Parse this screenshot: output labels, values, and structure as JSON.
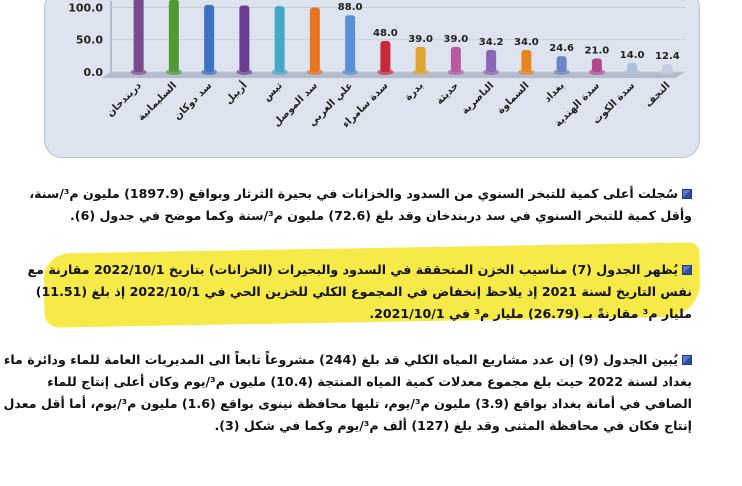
{
  "chart_data": {
    "type": "bar",
    "categories": [
      "دربندخان",
      "السليمانية",
      "سد دوكان",
      "أربيل",
      "تيس",
      "سد الموصل",
      "علي الغربي",
      "سدة سامراء",
      "بدرة",
      "حديثة",
      "الناصرية",
      "السماوة",
      "بغداد",
      "سدة الهندية",
      "سدة الكوت",
      "النجف"
    ],
    "values": [
      130,
      112,
      104,
      103,
      102,
      100,
      88.0,
      48.0,
      39.0,
      39.0,
      34.2,
      34.0,
      24.6,
      21.0,
      14.0,
      12.4
    ],
    "value_labels": [
      "",
      "",
      "",
      "",
      "",
      "",
      "88.0",
      "48.0",
      "39.0",
      "39.0",
      "34.2",
      "34.0",
      "24.6",
      "21.0",
      "14.0",
      "12.4"
    ],
    "y_ticks": [
      "0.0",
      "50.0",
      "100.0"
    ],
    "ylim": [
      0,
      110
    ],
    "colors": [
      "#7a4b8f",
      "#4f9a33",
      "#3d73c7",
      "#6a3f92",
      "#46a8c8",
      "#e8741e",
      "#5a8fd6",
      "#c8283a",
      "#e0a531",
      "#b65aa0",
      "#8c67b8",
      "#e8851e",
      "#6c86c4",
      "#b04a8a",
      "#a9c3d9",
      "#c3cfe0"
    ]
  },
  "paragraphs": [
    {
      "lines": [
        "سُجلت أعلى كمية للتبخر السنوي من السدود والخزانات في بحيرة الثرثار وبواقع (1897.9) مليون م³/سنة،",
        "وأقل كمية للتبخر السنوي في سد دربندخان وقد بلغ (72.6) مليون م³/سنة وكما موضح في جدول (6)."
      ]
    },
    {
      "lines": [
        "يُظهر الجدول (7) مناسيب الخزن المتحققة في السدود والبحيرات (الخزانات) بتاريخ 2022/10/1 مقارنة مع",
        "نفس التاريخ لسنة 2021 إذ يلاحظ إنخفاض في المجموع الكلي للخزين الحي في 2022/10/1 إذ بلغ (11.51)",
        "مليار م³ مقارنةً بـ (26.79) مليار م³ في 2021/10/1."
      ]
    },
    {
      "lines": [
        "يُبين الجدول (9) إن عدد مشاريع المياه الكلي قد بلغ (244) مشروعاً تابعاً الى المديريات العامة للماء ودائرة ماء",
        "بغداد لسنة 2022 حيث بلغ مجموع معدلات كمية المياه المنتجة (10.4) مليون م³/يوم وكان أعلى إنتاج للماء",
        "الصافي في أمانة بغداد بواقع (3.9) مليون م³/يوم، تليها محافظة نينوى بواقع (1.6) مليون م³/يوم، أما أقل معدل",
        "إنتاج فكان في محافظة المثنى وقد بلغ (127) ألف م³/يوم وكما في شكل (3)."
      ]
    }
  ]
}
